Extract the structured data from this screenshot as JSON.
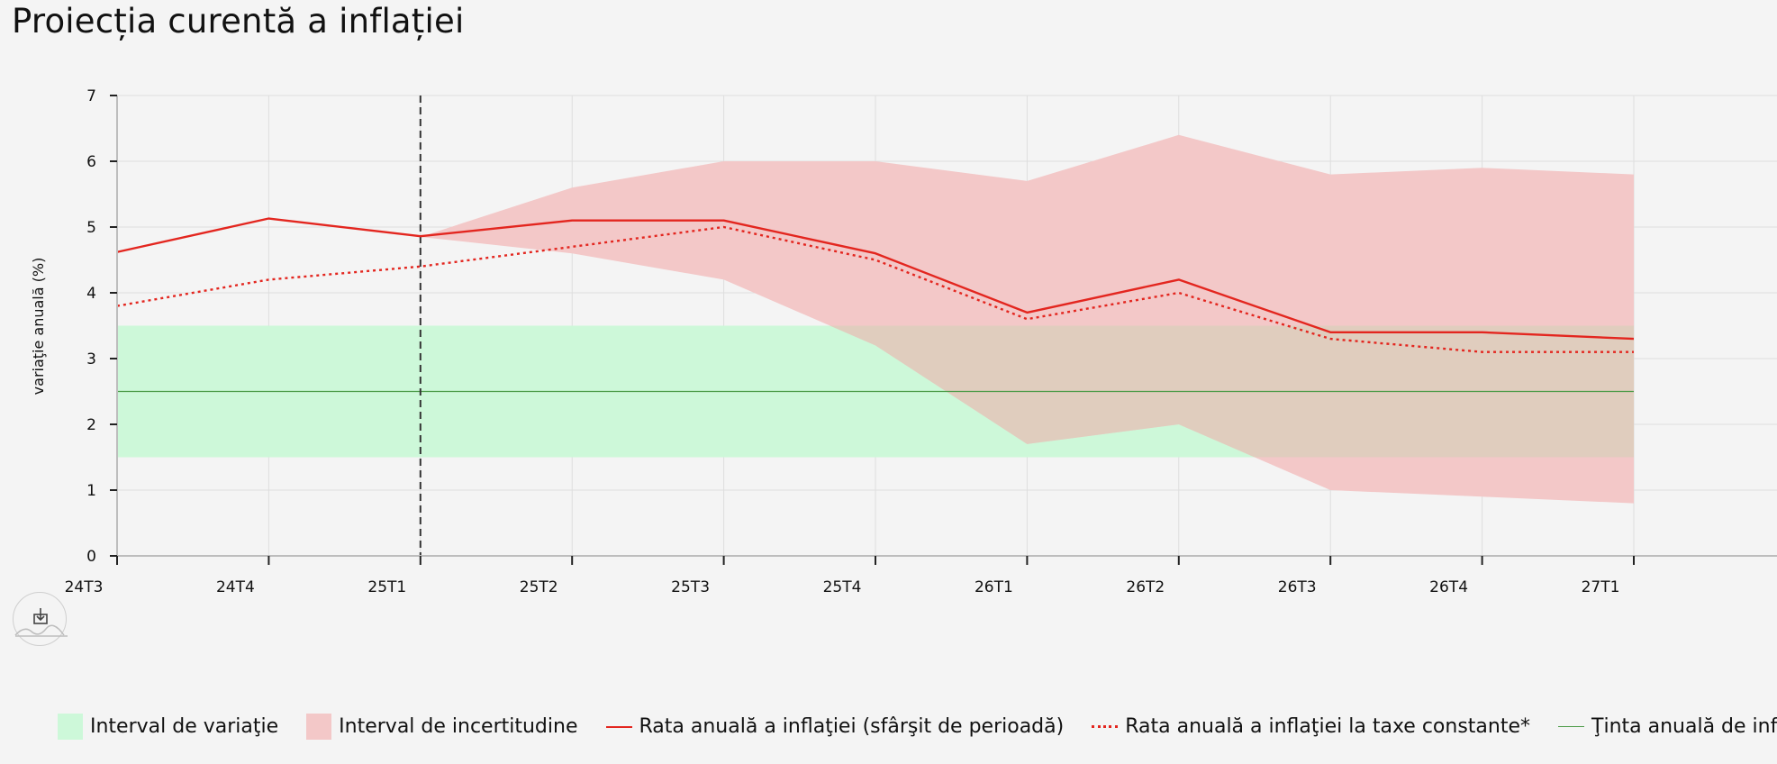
{
  "page": {
    "title": "Proiecția curentă a inflației"
  },
  "export": {
    "icon": "download-icon"
  },
  "colors": {
    "variation_band": "#cdf8d9",
    "uncertainty_band": "#f3c8c8",
    "overlap_band": "#e0cdbe",
    "inflation_line": "#e3261f",
    "target_line": "#4a9a46",
    "forecast_divider": "#333333",
    "grid": "#dedede",
    "axis": "#bdbdbd"
  },
  "chart_data": {
    "type": "line",
    "title": "Proiecția curentă a inflației",
    "ylabel": "variaţie anuală (%)",
    "xlabel": "",
    "categories": [
      "24T3",
      "24T4",
      "25T1",
      "25T2",
      "25T3",
      "25T4",
      "26T1",
      "26T2",
      "26T3",
      "26T4",
      "27T1"
    ],
    "ylim": [
      0,
      7
    ],
    "yticks": [
      0,
      1,
      2,
      3,
      4,
      5,
      6,
      7
    ],
    "grid": true,
    "legend_position": "bottom",
    "forecast_start": "25T1",
    "variation_interval": {
      "name": "Interval de variaţie",
      "low": 1.5,
      "high": 3.5
    },
    "target": {
      "name": "Ţinta anuală de inflaţie",
      "value": 2.5
    },
    "uncertainty_interval": {
      "name": "Interval de incertitudine",
      "x": [
        "25T1",
        "25T2",
        "25T3",
        "25T4",
        "26T1",
        "26T2",
        "26T3",
        "26T4",
        "27T1"
      ],
      "low": [
        4.85,
        4.6,
        4.2,
        3.2,
        1.7,
        2.0,
        1.0,
        0.9,
        0.8
      ],
      "high": [
        4.85,
        5.6,
        6.0,
        6.0,
        5.7,
        6.4,
        5.8,
        5.9,
        5.8
      ]
    },
    "series": [
      {
        "name": "Rata anuală a inflaţiei (sfârşit de perioadă)",
        "style": "solid",
        "values": [
          4.62,
          5.13,
          4.86,
          5.1,
          5.1,
          4.6,
          3.7,
          4.2,
          3.4,
          3.4,
          3.3
        ]
      },
      {
        "name": "Rata anuală a inflaţiei la taxe constante*",
        "style": "dotted",
        "values": [
          3.8,
          4.2,
          4.4,
          4.7,
          5.0,
          4.5,
          3.6,
          4.0,
          3.3,
          3.1,
          3.1
        ]
      }
    ]
  },
  "legend": [
    {
      "kind": "box",
      "label": "Interval de variaţie",
      "color": "#cdf8d9"
    },
    {
      "kind": "box",
      "label": "Interval de incertitudine",
      "color": "#f3c8c8"
    },
    {
      "kind": "solid",
      "label": "Rata anuală a inflaţiei (sfârşit de perioadă)",
      "color": "#e3261f"
    },
    {
      "kind": "dotted",
      "label": "Rata anuală a inflaţiei la taxe constante*",
      "color": "#e3261f"
    },
    {
      "kind": "thin",
      "label": "Ţinta anuală de inflaţie",
      "color": "#4a9a46"
    }
  ]
}
